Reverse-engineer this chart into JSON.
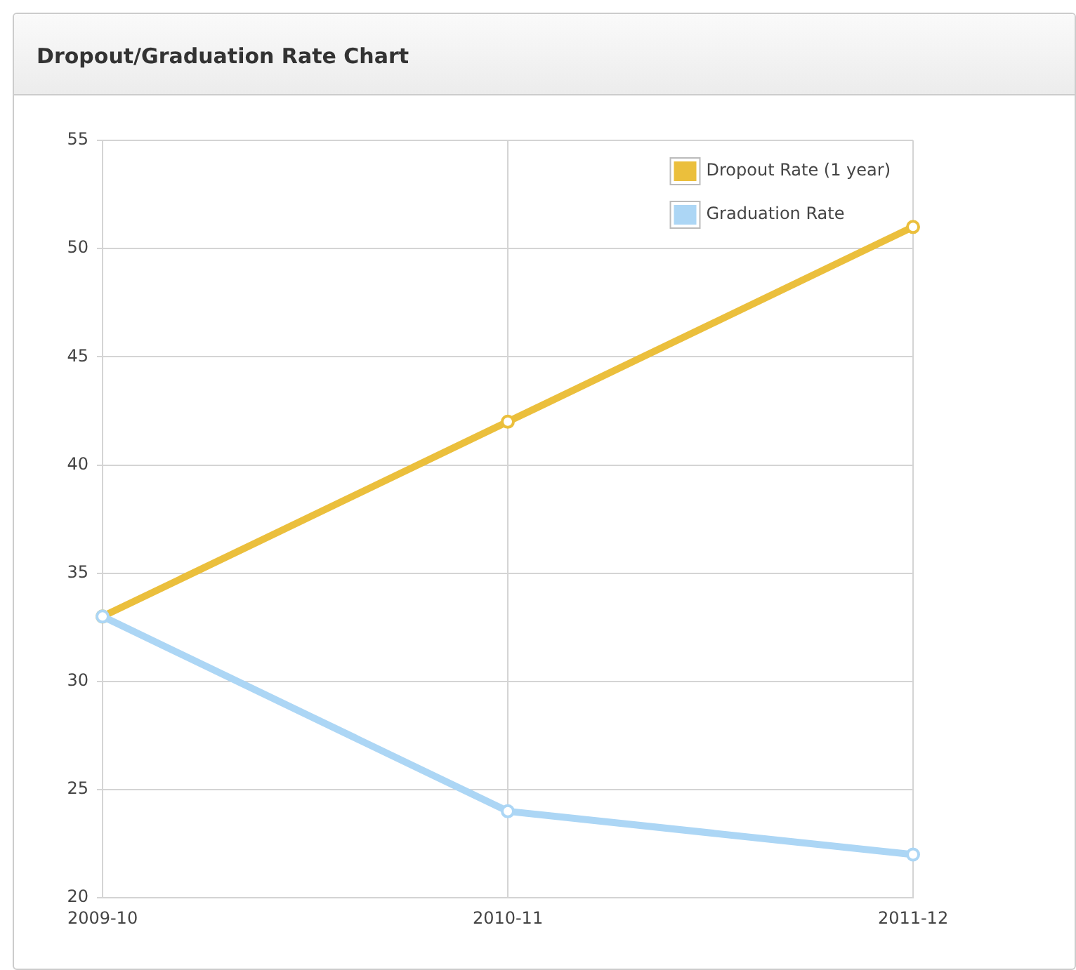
{
  "chart_data": {
    "type": "line",
    "title": "Dropout/Graduation Rate Chart",
    "categories": [
      "2009-10",
      "2010-11",
      "2011-12"
    ],
    "series": [
      {
        "name": "Dropout Rate (1 year)",
        "color": "#ebbf3c",
        "values": [
          33,
          42,
          51
        ]
      },
      {
        "name": "Graduation Rate",
        "color": "#acd6f5",
        "values": [
          33,
          24,
          22
        ]
      }
    ],
    "ylim": [
      20,
      55
    ],
    "yticks": [
      20,
      25,
      30,
      35,
      40,
      45,
      50,
      55
    ],
    "grid": true,
    "legend": "top right",
    "marker": "circle",
    "line_style": "solid"
  }
}
